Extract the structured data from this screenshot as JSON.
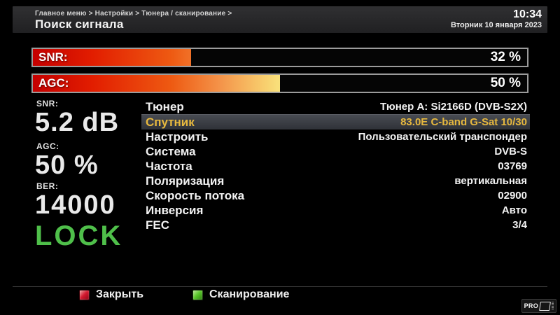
{
  "header": {
    "breadcrumb": "Главное меню > Настройки > Тюнера / сканирование >",
    "title": "Поиск сигнала",
    "time": "10:34",
    "date": "Вторник 10 января 2023"
  },
  "signal_bars": [
    {
      "name": "SNR",
      "label": "SNR:",
      "value_text": "32 %",
      "percent": 32
    },
    {
      "name": "AGC",
      "label": "AGC:",
      "value_text": "50 %",
      "percent": 50
    }
  ],
  "stats": [
    {
      "label": "SNR:",
      "value": "5.2 dB"
    },
    {
      "label": "AGC:",
      "value": "50 %"
    },
    {
      "label": "BER:",
      "value": "14000"
    }
  ],
  "lock_status": "LOCK",
  "settings": {
    "rows": [
      {
        "label": "Тюнер",
        "value": "Тюнер A: Si2166D (DVB-S2X)",
        "highlighted": false
      },
      {
        "label": "Спутник",
        "value": "83.0E C-band G-Sat 10/30",
        "highlighted": true
      },
      {
        "label": "Настроить",
        "value": "Пользовательский транспондер",
        "highlighted": false
      },
      {
        "label": "Система",
        "value": "DVB-S",
        "highlighted": false
      },
      {
        "label": "Частота",
        "value": "03769",
        "highlighted": false
      },
      {
        "label": "Поляризация",
        "value": "вертикальная",
        "highlighted": false
      },
      {
        "label": "Скорость потока",
        "value": "02900",
        "highlighted": false
      },
      {
        "label": "Инверсия",
        "value": "Авто",
        "highlighted": false
      },
      {
        "label": "FEC",
        "value": "3/4",
        "highlighted": false
      }
    ]
  },
  "footer": {
    "buttons": [
      {
        "key": "red",
        "label": "Закрыть"
      },
      {
        "key": "green",
        "label": "Сканирование"
      }
    ],
    "logo_text": "PRO"
  },
  "colors": {
    "highlight_text": "#e6b83e",
    "lock_green": "#4fbf4a",
    "key_red": "#d31a30",
    "key_green": "#57c428",
    "bar_gradient_start": "#c40000",
    "bar_gradient_end": "#faf48a"
  }
}
